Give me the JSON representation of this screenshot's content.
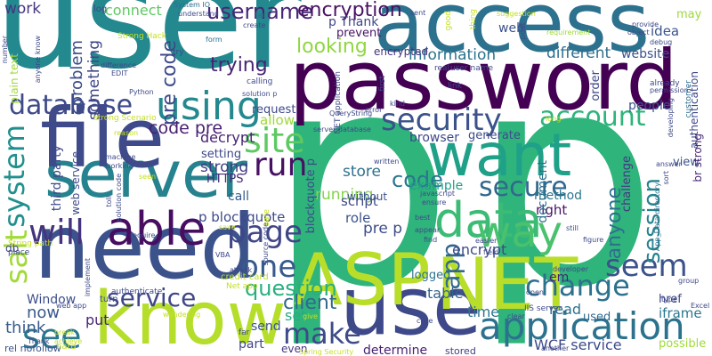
{
  "cloud": {
    "words": [
      {
        "text": "p",
        "color": "#2fb47c"
      },
      {
        "text": "p",
        "color": "#2fb47c"
      },
      {
        "text": "user",
        "color": "#23898e"
      },
      {
        "text": "access",
        "color": "#2c718e"
      },
      {
        "text": "password",
        "color": "#440154"
      },
      {
        "text": "need",
        "color": "#3b528b"
      },
      {
        "text": "know",
        "color": "#b5de2b"
      },
      {
        "text": "use",
        "color": "#3e4989"
      },
      {
        "text": "want",
        "color": "#1fa088"
      },
      {
        "text": "server",
        "color": "#26828e"
      },
      {
        "text": "file",
        "color": "#3e4a89"
      },
      {
        "text": "ASP",
        "color": "#b8de29"
      },
      {
        "text": "NET",
        "color": "#b8de29"
      },
      {
        "text": "application",
        "color": "#2c728e"
      },
      {
        "text": "able",
        "color": "#470d60"
      },
      {
        "text": "data",
        "color": "#3cbb75"
      },
      {
        "text": "will",
        "color": "#46337f"
      },
      {
        "text": "way",
        "color": "#4ac16d"
      },
      {
        "text": "database",
        "color": "#3e4a89"
      },
      {
        "text": "using",
        "color": "#23898e"
      },
      {
        "text": "security",
        "color": "#3b528b"
      },
      {
        "text": "account",
        "color": "#2fb47c"
      },
      {
        "text": "secure",
        "color": "#31688e"
      },
      {
        "text": "page",
        "color": "#404688"
      },
      {
        "text": "one",
        "color": "#375a8c"
      },
      {
        "text": "change",
        "color": "#2c718e"
      },
      {
        "text": "seem",
        "color": "#3b528b"
      },
      {
        "text": "service",
        "color": "#404788"
      },
      {
        "text": "make",
        "color": "#3e4a89"
      },
      {
        "text": "see",
        "color": "#2a788e"
      },
      {
        "text": "site",
        "color": "#5ec962"
      },
      {
        "text": "system",
        "color": "#21908d"
      },
      {
        "text": "salt",
        "color": "#a2da37"
      },
      {
        "text": "run",
        "color": "#471063"
      },
      {
        "text": "question",
        "color": "#29af7f"
      },
      {
        "text": "client",
        "color": "#31688e"
      },
      {
        "text": "code",
        "color": "#2a768e"
      },
      {
        "text": "app",
        "color": "#31688e"
      },
      {
        "text": "session",
        "color": "#26828e"
      },
      {
        "text": "anyone",
        "color": "#2e6f8e"
      },
      {
        "text": "username",
        "color": "#482677"
      },
      {
        "text": "encryption",
        "color": "#471164"
      },
      {
        "text": "looking",
        "color": "#90d743"
      },
      {
        "text": "trying",
        "color": "#482475"
      },
      {
        "text": "pre code",
        "color": "#3e4a89"
      },
      {
        "text": "code pre",
        "color": "#482071"
      },
      {
        "text": "something",
        "color": "#3f4788"
      },
      {
        "text": "information",
        "color": "#2c738e"
      },
      {
        "text": "different",
        "color": "#2e6e8e"
      },
      {
        "text": "website",
        "color": "#3b528b"
      },
      {
        "text": "running",
        "color": "#84d44b"
      },
      {
        "text": "work",
        "color": "#453581"
      },
      {
        "text": "problem",
        "color": "#3d4d8a"
      },
      {
        "text": "connect",
        "color": "#5ec962"
      },
      {
        "text": "idea",
        "color": "#3a548c"
      },
      {
        "text": "web",
        "color": "#3b528b"
      },
      {
        "text": "encrypted",
        "color": "#46327e"
      },
      {
        "text": "third party",
        "color": "#3e4a89"
      },
      {
        "text": "strong",
        "color": "#433d84"
      },
      {
        "text": "decrypt",
        "color": "#482374"
      },
      {
        "text": "store",
        "color": "#2c718e"
      },
      {
        "text": "pre p",
        "color": "#3d4e8a"
      },
      {
        "text": "script",
        "color": "#3e4a89"
      },
      {
        "text": "role",
        "color": "#3b528b"
      },
      {
        "text": "right",
        "color": "#481467"
      },
      {
        "text": "method",
        "color": "#2a778e"
      },
      {
        "text": "encrypt",
        "color": "#3e4a89"
      },
      {
        "text": "example",
        "color": "#1f9e89"
      },
      {
        "text": "Window",
        "color": "#3d4d8a"
      },
      {
        "text": "now",
        "color": "#38598c"
      },
      {
        "text": "think",
        "color": "#375b8d"
      },
      {
        "text": "put",
        "color": "#482677"
      },
      {
        "text": "time",
        "color": "#2a768e"
      },
      {
        "text": "read",
        "color": "#2c718e"
      },
      {
        "text": "WCF service",
        "color": "#3e4989"
      },
      {
        "text": "possible",
        "color": "#a0da39"
      },
      {
        "text": "view",
        "color": "#3b528b"
      },
      {
        "text": "href",
        "color": "#3f4889"
      },
      {
        "text": "iframe",
        "color": "#2a778e"
      },
      {
        "text": "p blockquote",
        "color": "#3e4a89"
      },
      {
        "text": "allow",
        "color": "#9dd93b"
      },
      {
        "text": "HTTPS",
        "color": "#482878"
      },
      {
        "text": "call",
        "color": "#375b8d"
      },
      {
        "text": "set",
        "color": "#25ac82"
      },
      {
        "text": "part",
        "color": "#3f4788"
      },
      {
        "text": "send",
        "color": "#39558c"
      },
      {
        "text": "table",
        "color": "#33638d"
      },
      {
        "text": "used",
        "color": "#31688e"
      },
      {
        "text": "em",
        "color": "#482575"
      },
      {
        "text": "document",
        "color": "#2c728e"
      },
      {
        "text": "challenge",
        "color": "#453882"
      },
      {
        "text": "browser",
        "color": "#3e4a89"
      },
      {
        "text": "generate",
        "color": "#3e4c8a"
      },
      {
        "text": "logged",
        "color": "#2c728e"
      },
      {
        "text": "order",
        "color": "#3e4989"
      },
      {
        "text": "people",
        "color": "#3b528b"
      },
      {
        "text": "request",
        "color": "#3e4989"
      },
      {
        "text": "setting",
        "color": "#3e4989"
      },
      {
        "text": "prevent",
        "color": "#471365"
      },
      {
        "text": "p Thank",
        "color": "#3f4788"
      },
      {
        "text": "may",
        "color": "#9bd93c"
      },
      {
        "text": "fact",
        "color": "#31688e"
      },
      {
        "text": "db",
        "color": "#414487"
      },
      {
        "text": "rel nofollow",
        "color": "#3b528b"
      },
      {
        "text": "without",
        "color": "#3b528b"
      },
      {
        "text": "even",
        "color": "#453781"
      },
      {
        "text": "determine",
        "color": "#482173"
      },
      {
        "text": "stored",
        "color": "#433e85"
      },
      {
        "text": "authentication",
        "color": "#3e4989"
      },
      {
        "text": "br strong",
        "color": "#482677"
      },
      {
        "text": "blockquote p",
        "color": "#3e4a89"
      },
      {
        "text": "credit card",
        "color": "#bddf26"
      },
      {
        "text": "Net app",
        "color": "#c2df23"
      },
      {
        "text": "authenticate",
        "color": "#3e4989"
      },
      {
        "text": "Spring Security",
        "color": "#c8e020"
      },
      {
        "text": "IIS server",
        "color": "#3e4989"
      },
      {
        "text": "Strong Hack",
        "color": "#c5e021"
      },
      {
        "text": "System IO",
        "color": "#2f6c8e"
      },
      {
        "text": "understand",
        "color": "#3e4a89"
      },
      {
        "text": "plain text",
        "color": "#a0da39"
      },
      {
        "text": "log",
        "color": "#3e4989"
      },
      {
        "text": "form",
        "color": "#2c718e"
      },
      {
        "text": "create",
        "color": "#3f4889"
      },
      {
        "text": "try",
        "color": "#3e4989"
      },
      {
        "text": "Python",
        "color": "#3f4889"
      },
      {
        "text": "difference",
        "color": "#3e4989"
      },
      {
        "text": "EDIT",
        "color": "#3e4989"
      },
      {
        "text": "calling",
        "color": "#3e4a89"
      },
      {
        "text": "solution p",
        "color": "#3e4a89"
      },
      {
        "text": "kind",
        "color": "#3e4989"
      },
      {
        "text": "error",
        "color": "#3e4989"
      },
      {
        "text": "QueryString",
        "color": "#3e4989"
      },
      {
        "text": "server database",
        "color": "#3e4989"
      },
      {
        "text": "user name",
        "color": "#3e4989"
      },
      {
        "text": "real",
        "color": "#3e4989"
      },
      {
        "text": "link",
        "color": "#3e4989"
      },
      {
        "text": "sent",
        "color": "#3e4989"
      },
      {
        "text": "suggestion",
        "color": "#c5e021"
      },
      {
        "text": "requirement",
        "color": "#a0da39"
      },
      {
        "text": "provide",
        "color": "#3e4989"
      },
      {
        "text": "object",
        "color": "#3e4989"
      },
      {
        "text": "debug",
        "color": "#3e4989"
      },
      {
        "text": "already",
        "color": "#3e4989"
      },
      {
        "text": "permission",
        "color": "#3e4989"
      },
      {
        "text": "customer",
        "color": "#2f6c8e"
      },
      {
        "text": "developing",
        "color": "#3e4989"
      },
      {
        "text": "answer",
        "color": "#3e4989"
      },
      {
        "text": "sort",
        "color": "#3e4989"
      },
      {
        "text": "App_Data directory",
        "color": "#2c718e"
      },
      {
        "text": "written",
        "color": "#3e4989"
      },
      {
        "text": "javascript",
        "color": "#3e4989"
      },
      {
        "text": "ensure",
        "color": "#3e4989"
      },
      {
        "text": "best",
        "color": "#3e4989"
      },
      {
        "text": "appear",
        "color": "#3e4989"
      },
      {
        "text": "find",
        "color": "#3e4989"
      },
      {
        "text": "easier",
        "color": "#3e4989"
      },
      {
        "text": "field",
        "color": "#3e4989"
      },
      {
        "text": "developer",
        "color": "#3e4989"
      },
      {
        "text": "figure",
        "color": "#3e4989"
      },
      {
        "text": "still",
        "color": "#3e4989"
      },
      {
        "text": "group",
        "color": "#3e4989"
      },
      {
        "text": "open",
        "color": "#3e4989"
      },
      {
        "text": "clear",
        "color": "#3e4989"
      },
      {
        "text": "case",
        "color": "#3e4989"
      },
      {
        "text": "another",
        "color": "#3e4989"
      },
      {
        "text": "type",
        "color": "#3e4989"
      },
      {
        "text": "Excel",
        "color": "#3e4989"
      },
      {
        "text": "wondering",
        "color": "#c5e021"
      },
      {
        "text": "give",
        "color": "#c5e021"
      },
      {
        "text": "far",
        "color": "#3e4989"
      },
      {
        "text": "save",
        "color": "#c5e021"
      },
      {
        "text": "VBA",
        "color": "#3e4989"
      },
      {
        "text": "attack",
        "color": "#3e4989"
      },
      {
        "text": "turn",
        "color": "#3e4989"
      },
      {
        "text": "hard",
        "color": "#c5e021"
      },
      {
        "text": "implement",
        "color": "#3e4989"
      },
      {
        "text": "Thank",
        "color": "#3e4989"
      },
      {
        "text": "break",
        "color": "#c5e021"
      },
      {
        "text": "achieve",
        "color": "#c5e021"
      },
      {
        "text": "String path",
        "color": "#c5e021"
      },
      {
        "text": "place",
        "color": "#3e4989"
      },
      {
        "text": "require",
        "color": "#3e4989"
      },
      {
        "text": "machine",
        "color": "#3e4989"
      },
      {
        "text": "working",
        "color": "#3e4989"
      },
      {
        "text": "strong Scenario",
        "color": "#c5e021"
      },
      {
        "text": "reason",
        "color": "#c5e021"
      },
      {
        "text": "anyone know",
        "color": "#3e4989"
      },
      {
        "text": "number",
        "color": "#3e4989"
      },
      {
        "text": "seen",
        "color": "#c5e021"
      },
      {
        "text": "toll",
        "color": "#3e4989"
      },
      {
        "text": "solution code",
        "color": "#3e4989"
      },
      {
        "text": "web app",
        "color": "#3e4989"
      },
      {
        "text": "long",
        "color": "#c5e021"
      },
      {
        "text": "thing",
        "color": "#c5e021"
      },
      {
        "text": "good",
        "color": "#c5e021"
      },
      {
        "text": "first",
        "color": "#3e4989"
      },
      {
        "text": "post",
        "color": "#3e4989"
      },
      {
        "text": "web service",
        "color": "#3e4989"
      },
      {
        "text": "NET application",
        "color": "#3e4989"
      },
      {
        "text": "safe",
        "color": "#c5e021"
      },
      {
        "text": "source code",
        "color": "#3e4989"
      }
    ]
  }
}
